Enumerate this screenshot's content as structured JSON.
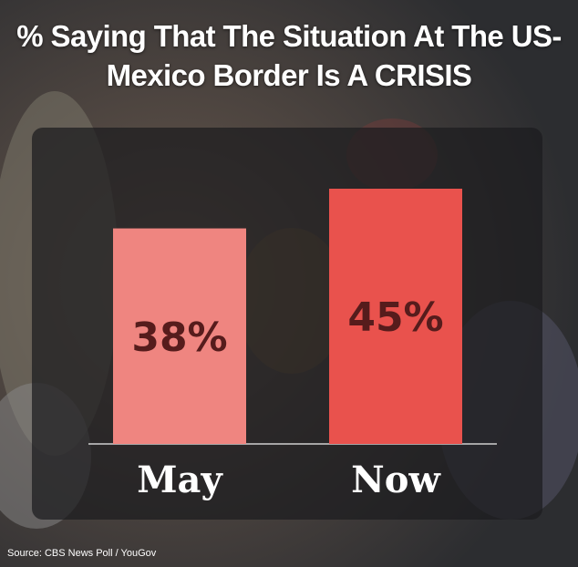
{
  "chart_data": {
    "type": "bar",
    "title": "% Saying That The Situation At The US-Mexico Border Is A CRISIS",
    "categories": [
      "May",
      "Now"
    ],
    "values": [
      38,
      45
    ],
    "value_labels": [
      "38%",
      "45%"
    ],
    "colors": [
      "#ef8580",
      "#e9524d"
    ],
    "source": "Source: CBS News Poll / YouGov"
  }
}
